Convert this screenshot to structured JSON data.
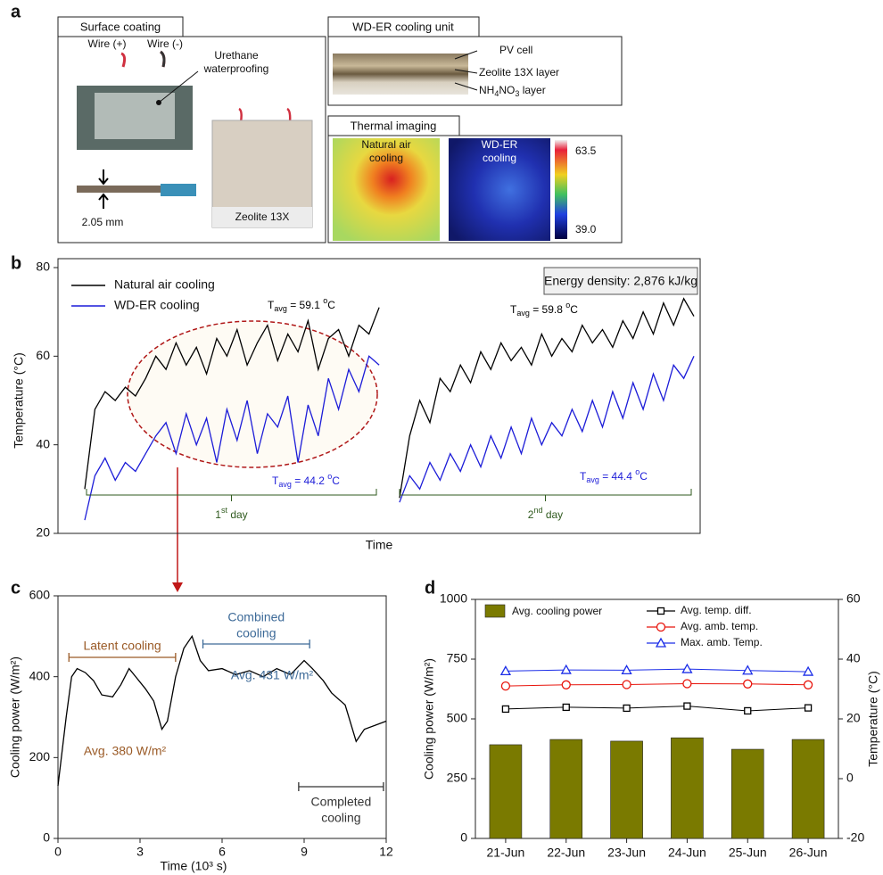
{
  "panel_labels": [
    "a",
    "b",
    "c",
    "d"
  ],
  "panel_a": {
    "surface_coating": {
      "title": "Surface coating",
      "wire_pos": "Wire (+)",
      "wire_neg": "Wire (-)",
      "urethane": [
        "Urethane",
        "waterproofing"
      ],
      "thickness": "2.05 mm",
      "zeolite": "Zeolite 13X"
    },
    "cooling_unit": {
      "title": "WD-ER cooling unit",
      "pv": "PV cell",
      "zeolite_layer": "Zeolite 13X layer",
      "nh4no3": [
        "NH",
        "4",
        "NO",
        "3",
        " layer"
      ]
    },
    "thermal": {
      "title": "Thermal imaging",
      "natural": [
        "Natural air",
        "cooling"
      ],
      "wder": [
        "WD-ER",
        "cooling"
      ],
      "colorbar_max": "63.5",
      "colorbar_min": "39.0"
    }
  },
  "chart_data": [
    {
      "type": "line",
      "xlabel": "Time",
      "ylabel": "Temperature (°C)",
      "ylim": [
        20,
        80
      ],
      "yticks": [
        20,
        40,
        60,
        80
      ],
      "series": [
        {
          "name": "Natural air cooling",
          "color": "#000000",
          "values": [
            30,
            48,
            52,
            50,
            53,
            51,
            55,
            60,
            57,
            63,
            58,
            62,
            56,
            64,
            60,
            66,
            58,
            63,
            67,
            59,
            65,
            61,
            68,
            57,
            64,
            66,
            60,
            67,
            65,
            71,
            null,
            28,
            42,
            50,
            45,
            55,
            52,
            58,
            54,
            61,
            57,
            63,
            59,
            62,
            58,
            65,
            60,
            64,
            61,
            67,
            63,
            66,
            62,
            68,
            64,
            70,
            65,
            72,
            67,
            73,
            69
          ]
        },
        {
          "name": "WD-ER cooling",
          "color": "#1c1cd8",
          "values": [
            23,
            33,
            37,
            32,
            36,
            34,
            38,
            42,
            45,
            38,
            47,
            40,
            46,
            36,
            48,
            41,
            50,
            38,
            47,
            44,
            51,
            36,
            49,
            42,
            55,
            48,
            57,
            52,
            60,
            58,
            null,
            27,
            33,
            30,
            36,
            32,
            38,
            34,
            40,
            35,
            42,
            37,
            44,
            38,
            46,
            40,
            45,
            42,
            48,
            43,
            50,
            44,
            52,
            46,
            54,
            48,
            56,
            50,
            58,
            55,
            60
          ]
        }
      ],
      "annotations": [
        {
          "main": "T",
          "sub": "avg",
          "text": " = 59.1 ",
          "sup": "o",
          "end": "C",
          "color": "#000000"
        },
        {
          "main": "T",
          "sub": "avg",
          "text": " = 59.8 ",
          "sup": "o",
          "end": "C",
          "color": "#000000"
        },
        {
          "main": "T",
          "sub": "avg",
          "text": " = 44.2 ",
          "sup": "o",
          "end": "C",
          "color": "#1c1cd8"
        },
        {
          "main": "T",
          "sub": "avg",
          "text": " = 44.4 ",
          "sup": "o",
          "end": "C",
          "color": "#1c1cd8"
        }
      ],
      "periods": [
        {
          "main": "1",
          "sup": "st",
          "end": " day"
        },
        {
          "main": "2",
          "sup": "nd",
          "end": " day"
        }
      ],
      "info_box": "Energy density: 2,876 kJ/kg"
    },
    {
      "type": "line",
      "xlabel": "Time (10³ s)",
      "ylabel": "Cooling power (W/m²)",
      "xlim": [
        0,
        12
      ],
      "xticks": [
        0,
        3,
        6,
        9,
        12
      ],
      "ylim": [
        0,
        600
      ],
      "yticks": [
        0,
        200,
        400,
        600
      ],
      "x": [
        0,
        0.3,
        0.5,
        0.7,
        1.0,
        1.3,
        1.6,
        2.0,
        2.3,
        2.6,
        2.9,
        3.2,
        3.5,
        3.8,
        4.0,
        4.3,
        4.6,
        4.9,
        5.2,
        5.5,
        6.0,
        6.5,
        7.0,
        7.5,
        8.0,
        8.5,
        9.0,
        9.3,
        9.7,
        10.0,
        10.5,
        10.9,
        11.2,
        11.6,
        12
      ],
      "values": [
        130,
        300,
        400,
        420,
        410,
        390,
        355,
        350,
        380,
        420,
        395,
        370,
        340,
        270,
        290,
        400,
        470,
        500,
        440,
        415,
        420,
        405,
        415,
        400,
        420,
        405,
        440,
        420,
        390,
        360,
        330,
        240,
        270,
        280,
        290
      ],
      "color": "#000000",
      "annotations": [
        {
          "lines": [
            "Latent cooling"
          ],
          "span": [
            0.4,
            4.3
          ],
          "color": "#9a5a26"
        },
        {
          "lines": [
            "Combined",
            "cooling"
          ],
          "span": [
            5.3,
            9.2
          ],
          "color": "#3d6a98"
        },
        {
          "lines": [
            "Completed",
            "cooling"
          ],
          "span": [
            8.8,
            11.9
          ],
          "color": "#333333"
        },
        {
          "lines": [
            "Avg. 431 W/m²"
          ],
          "color": "#3d6a98"
        },
        {
          "lines": [
            "Avg. 380 W/m²"
          ],
          "color": "#9a5a26"
        }
      ]
    },
    {
      "type": "combo",
      "ylabel": "Cooling power (W/m²)",
      "y2label": "Temperature (°C)",
      "categories": [
        "21-Jun",
        "22-Jun",
        "23-Jun",
        "24-Jun",
        "25-Jun",
        "26-Jun"
      ],
      "ylim": [
        0,
        1000
      ],
      "yticks": [
        0,
        250,
        500,
        750,
        1000
      ],
      "y2lim": [
        -20,
        60
      ],
      "y2ticks": [
        -20,
        0,
        20,
        40,
        60
      ],
      "series": [
        {
          "name": "Avg. cooling power",
          "type": "bar",
          "color": "#7a7a00",
          "values": [
            392,
            414,
            407,
            421,
            373,
            414
          ]
        },
        {
          "name": "Avg. temp. diff.",
          "type": "line",
          "marker": "square",
          "axis": "y2",
          "color": "#000000",
          "values": [
            23.3,
            23.9,
            23.6,
            24.3,
            22.7,
            23.7
          ]
        },
        {
          "name": "Avg. amb. temp.",
          "type": "line",
          "marker": "circle",
          "axis": "y2",
          "color": "#e8140c",
          "values": [
            31.0,
            31.4,
            31.5,
            31.8,
            31.7,
            31.4
          ]
        },
        {
          "name": "Max. amb. Temp.",
          "type": "line",
          "marker": "triangle",
          "axis": "y2",
          "color": "#1c2ee8",
          "values": [
            36.0,
            36.4,
            36.3,
            36.7,
            36.2,
            35.8
          ]
        }
      ]
    }
  ]
}
